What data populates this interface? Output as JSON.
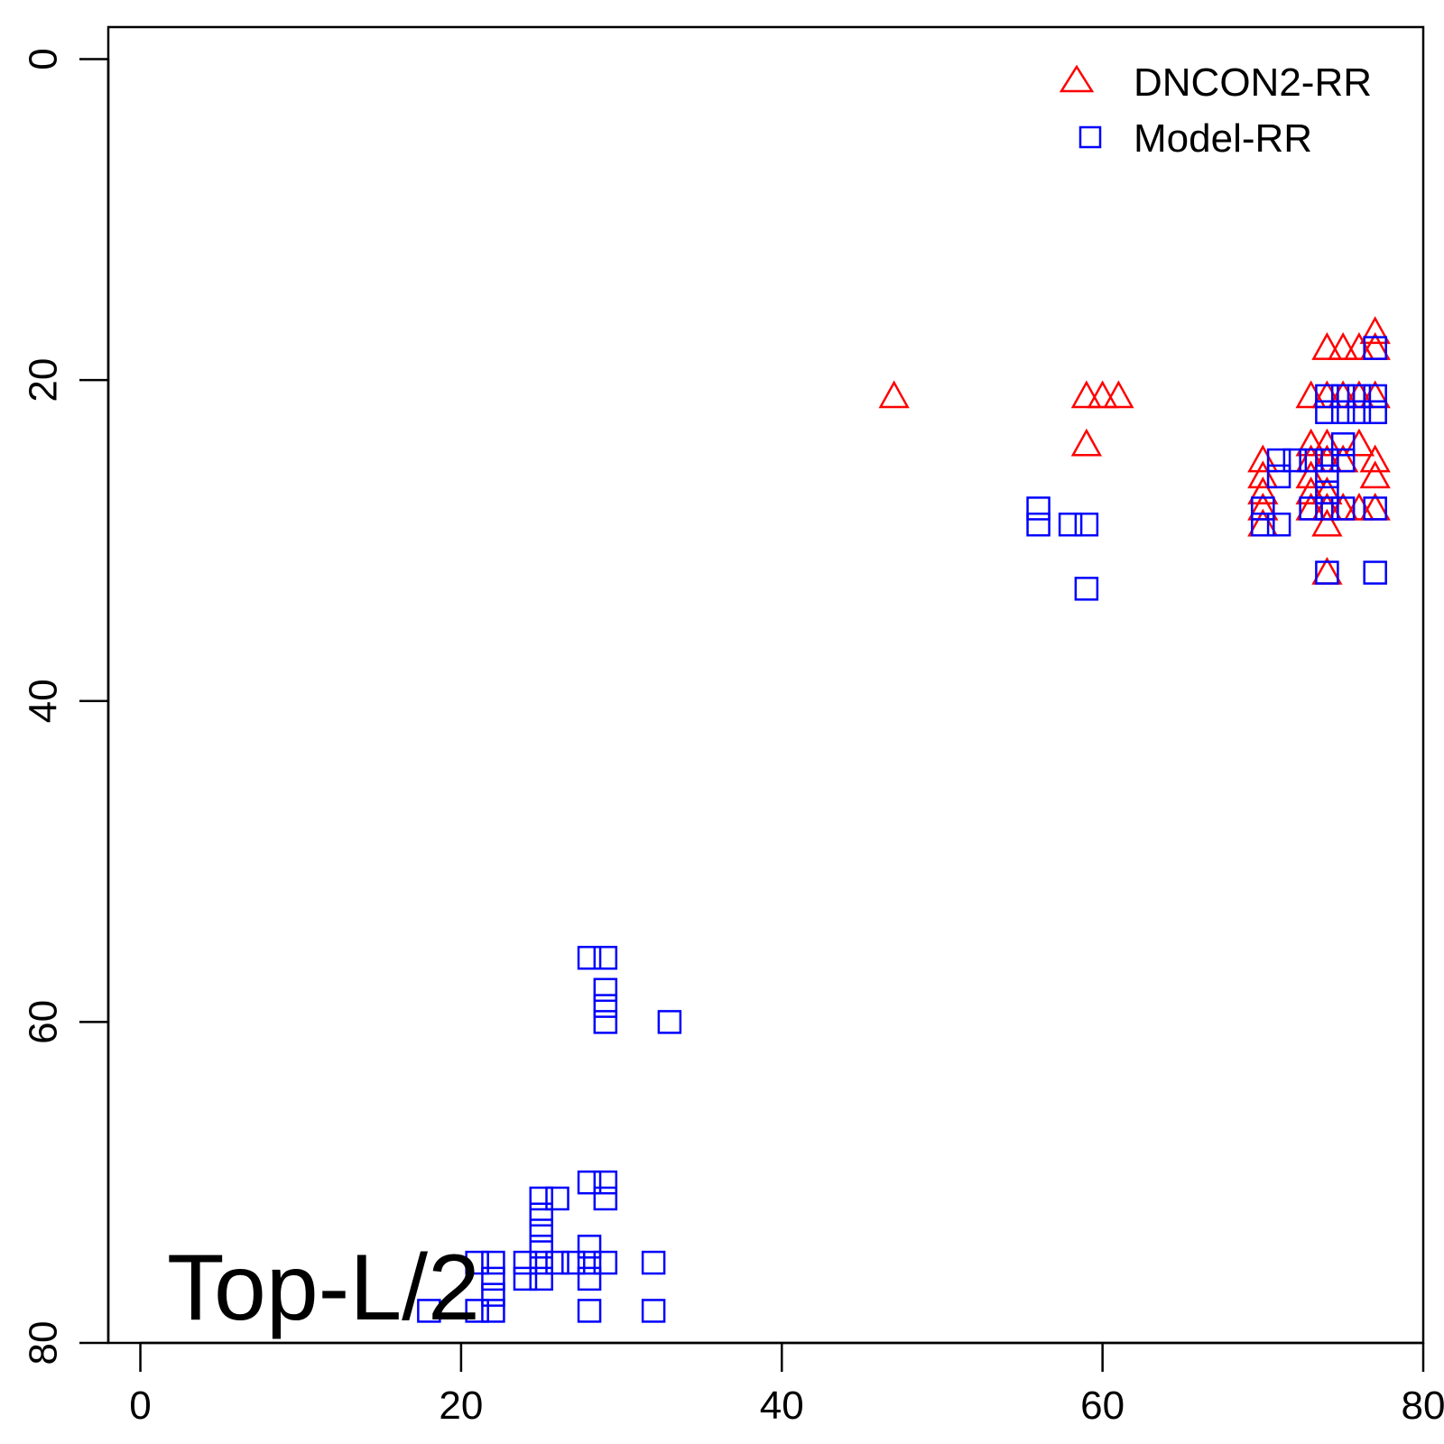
{
  "chart_data": {
    "type": "scatter",
    "title": "",
    "xlabel": "",
    "ylabel": "",
    "xlim": [
      -2,
      80
    ],
    "ylim": [
      80,
      -2
    ],
    "y_reversed": true,
    "x_ticks": [
      0,
      20,
      40,
      60,
      80
    ],
    "y_ticks": [
      0,
      20,
      40,
      60,
      80
    ],
    "grid": false,
    "legend": {
      "position": "top-right"
    },
    "annotation": "Top-L/2",
    "series": [
      {
        "name": "DNCON2-RR",
        "marker": "triangle",
        "color": "#ff0000",
        "points": [
          [
            47,
            21
          ],
          [
            59,
            21
          ],
          [
            60,
            21
          ],
          [
            61,
            21
          ],
          [
            59,
            24
          ],
          [
            73,
            21
          ],
          [
            74,
            21
          ],
          [
            75,
            21
          ],
          [
            76,
            21
          ],
          [
            77,
            21
          ],
          [
            74,
            18
          ],
          [
            75,
            18
          ],
          [
            76,
            18
          ],
          [
            77,
            18
          ],
          [
            77,
            17
          ],
          [
            73,
            24
          ],
          [
            74,
            24
          ],
          [
            76,
            24
          ],
          [
            70,
            25
          ],
          [
            73,
            25
          ],
          [
            74,
            25
          ],
          [
            75,
            25
          ],
          [
            77,
            25
          ],
          [
            70,
            26
          ],
          [
            73,
            26
          ],
          [
            77,
            26
          ],
          [
            70,
            27
          ],
          [
            73,
            27
          ],
          [
            74,
            27
          ],
          [
            70,
            28
          ],
          [
            73,
            28
          ],
          [
            74,
            28
          ],
          [
            75,
            28
          ],
          [
            76,
            28
          ],
          [
            77,
            28
          ],
          [
            70,
            29
          ],
          [
            74,
            29
          ],
          [
            74,
            32
          ]
        ]
      },
      {
        "name": "Model-RR",
        "marker": "square",
        "color": "#0000ff",
        "points": [
          [
            56,
            28
          ],
          [
            56,
            29
          ],
          [
            58,
            29
          ],
          [
            59,
            29
          ],
          [
            59,
            33
          ],
          [
            70,
            28
          ],
          [
            70,
            29
          ],
          [
            71,
            25
          ],
          [
            71,
            26
          ],
          [
            72,
            25
          ],
          [
            71,
            29
          ],
          [
            73,
            25
          ],
          [
            73,
            28
          ],
          [
            74,
            21
          ],
          [
            74,
            22
          ],
          [
            74,
            25
          ],
          [
            74,
            26
          ],
          [
            74,
            27
          ],
          [
            74,
            28
          ],
          [
            74,
            32
          ],
          [
            75,
            21
          ],
          [
            75,
            22
          ],
          [
            75,
            24
          ],
          [
            75,
            25
          ],
          [
            75,
            28
          ],
          [
            76,
            21
          ],
          [
            76,
            22
          ],
          [
            77,
            18
          ],
          [
            77,
            21
          ],
          [
            77,
            22
          ],
          [
            77,
            28
          ],
          [
            77,
            32
          ],
          [
            28,
            56
          ],
          [
            29,
            56
          ],
          [
            29,
            58
          ],
          [
            29,
            59
          ],
          [
            29,
            60
          ],
          [
            33,
            60
          ],
          [
            28,
            70
          ],
          [
            29,
            70
          ],
          [
            29,
            71
          ],
          [
            25,
            71
          ],
          [
            25,
            72
          ],
          [
            26,
            71
          ],
          [
            25,
            73
          ],
          [
            25,
            74
          ],
          [
            28,
            74
          ],
          [
            21,
            75
          ],
          [
            22,
            75
          ],
          [
            24,
            75
          ],
          [
            25,
            75
          ],
          [
            26,
            75
          ],
          [
            27,
            75
          ],
          [
            28,
            75
          ],
          [
            29,
            75
          ],
          [
            32,
            75
          ],
          [
            22,
            76
          ],
          [
            24,
            76
          ],
          [
            25,
            76
          ],
          [
            28,
            76
          ],
          [
            22,
            77
          ],
          [
            18,
            78
          ],
          [
            21,
            78
          ],
          [
            22,
            78
          ],
          [
            28,
            78
          ],
          [
            32,
            78
          ]
        ]
      }
    ]
  }
}
